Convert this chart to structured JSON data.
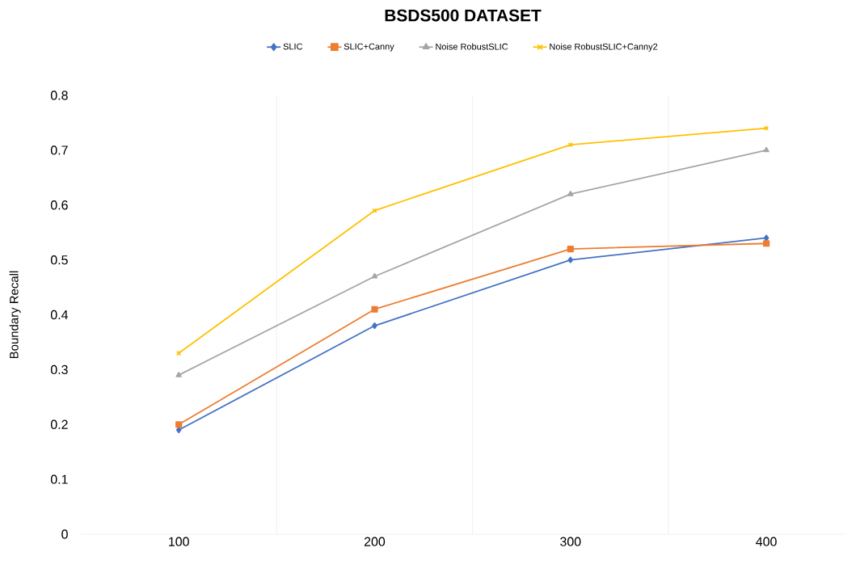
{
  "chart_data": {
    "type": "line",
    "title": "BSDS500 DATASET",
    "ylabel": "Boundary Recall",
    "categories": [
      "100",
      "200",
      "300",
      "400"
    ],
    "series": [
      {
        "name": "SLIC",
        "color": "#4472c4",
        "marker": "diamond",
        "values": [
          0.19,
          0.38,
          0.5,
          0.54
        ]
      },
      {
        "name": "SLIC+Canny",
        "color": "#ed7d31",
        "marker": "square",
        "values": [
          0.2,
          0.41,
          0.52,
          0.53
        ]
      },
      {
        "name": "Noise RobustSLIC",
        "color": "#a5a5a5",
        "marker": "triangle",
        "values": [
          0.29,
          0.47,
          0.62,
          0.7
        ]
      },
      {
        "name": "Noise RobustSLIC+Canny2",
        "color": "#ffc000",
        "marker": "cross",
        "values": [
          0.33,
          0.59,
          0.71,
          0.74
        ]
      }
    ],
    "ylim": [
      0,
      0.8
    ],
    "yticks": [
      0,
      0.1,
      0.2,
      0.3,
      0.4,
      0.5,
      0.6,
      0.7,
      0.8
    ],
    "grid": "x",
    "legend": "top",
    "line_style": "solid"
  }
}
